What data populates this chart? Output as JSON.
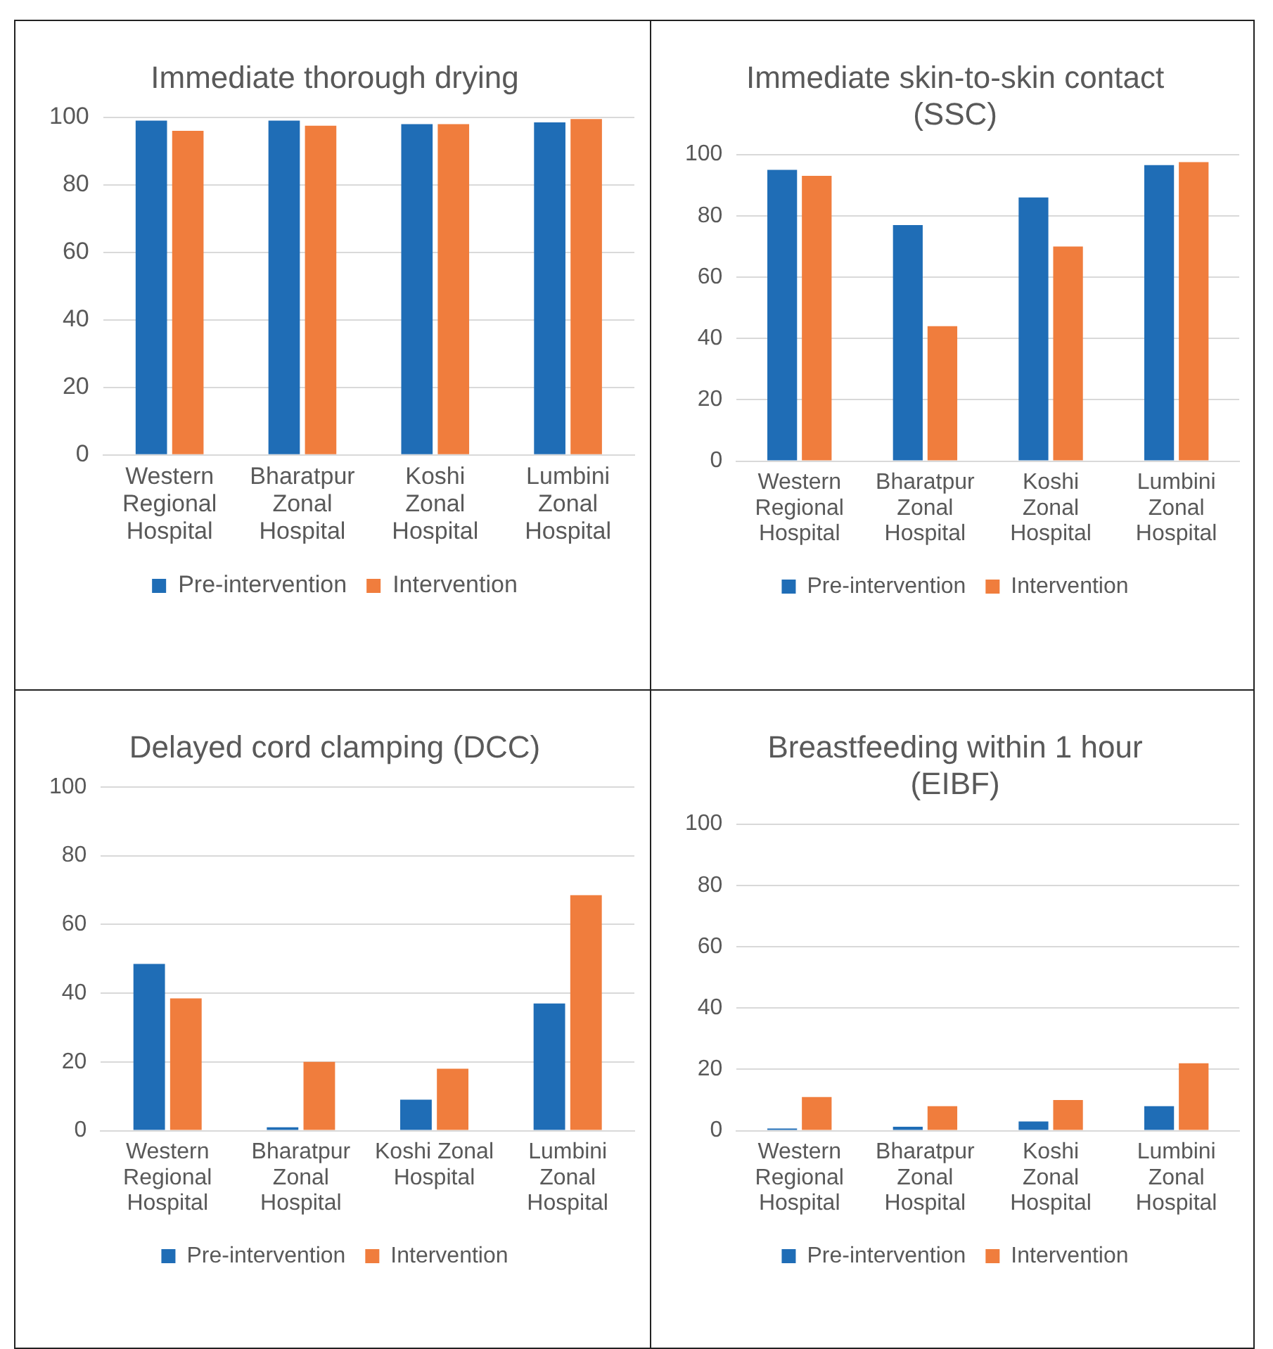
{
  "chart_data": [
    {
      "type": "bar",
      "title": "Immediate thorough drying",
      "categories": [
        "Western Regional Hospital",
        "Bharatpur Zonal Hospital",
        "Koshi Zonal Hospital",
        "Lumbini Zonal Hospital"
      ],
      "series": [
        {
          "name": "Pre-intervention",
          "color": "#1f6db6",
          "values": [
            99,
            99,
            98,
            98.5
          ]
        },
        {
          "name": "Intervention",
          "color": "#f07d3d",
          "values": [
            96,
            97.5,
            98,
            99.5
          ]
        }
      ],
      "ylim": [
        0,
        100
      ],
      "yticks": [
        0,
        20,
        40,
        60,
        80,
        100
      ],
      "grid": "y",
      "legend": "bottom"
    },
    {
      "type": "bar",
      "title": "Immediate skin-to-skin contact (SSC)",
      "categories": [
        "Western Regional Hospital",
        "Bharatpur Zonal Hospital",
        "Koshi Zonal Hospital",
        "Lumbini Zonal Hospital"
      ],
      "series": [
        {
          "name": "Pre-intervention",
          "color": "#1f6db6",
          "values": [
            95,
            77,
            86,
            96.5
          ]
        },
        {
          "name": "Intervention",
          "color": "#f07d3d",
          "values": [
            93,
            44,
            70,
            97.5
          ]
        }
      ],
      "ylim": [
        0,
        100
      ],
      "yticks": [
        0,
        20,
        40,
        60,
        80,
        100
      ],
      "grid": "y",
      "legend": "bottom"
    },
    {
      "type": "bar",
      "title": "Delayed cord clamping (DCC)",
      "categories": [
        "Western Regional Hospital",
        "Bharatpur Zonal Hospital",
        "Koshi Zonal Hospital",
        "Lumbini Zonal Hospital"
      ],
      "series": [
        {
          "name": "Pre-intervention",
          "color": "#1f6db6",
          "values": [
            48.5,
            1,
            9,
            37
          ]
        },
        {
          "name": "Intervention",
          "color": "#f07d3d",
          "values": [
            38.5,
            20,
            18,
            68.5
          ]
        }
      ],
      "ylim": [
        0,
        100
      ],
      "yticks": [
        0,
        20,
        40,
        60,
        80,
        100
      ],
      "grid": "y",
      "legend": "bottom"
    },
    {
      "type": "bar",
      "title": "Breastfeeding within 1 hour (EIBF)",
      "categories": [
        "Western Regional Hospital",
        "Bharatpur Zonal Hospital",
        "Koshi Zonal Hospital",
        "Lumbini Zonal Hospital"
      ],
      "series": [
        {
          "name": "Pre-intervention",
          "color": "#1f6db6",
          "values": [
            0.7,
            1.3,
            3,
            8
          ]
        },
        {
          "name": "Intervention",
          "color": "#f07d3d",
          "values": [
            11,
            8,
            10,
            22
          ]
        }
      ],
      "ylim": [
        0,
        100
      ],
      "yticks": [
        0,
        20,
        40,
        60,
        80,
        100
      ],
      "grid": "y",
      "legend": "bottom"
    }
  ]
}
